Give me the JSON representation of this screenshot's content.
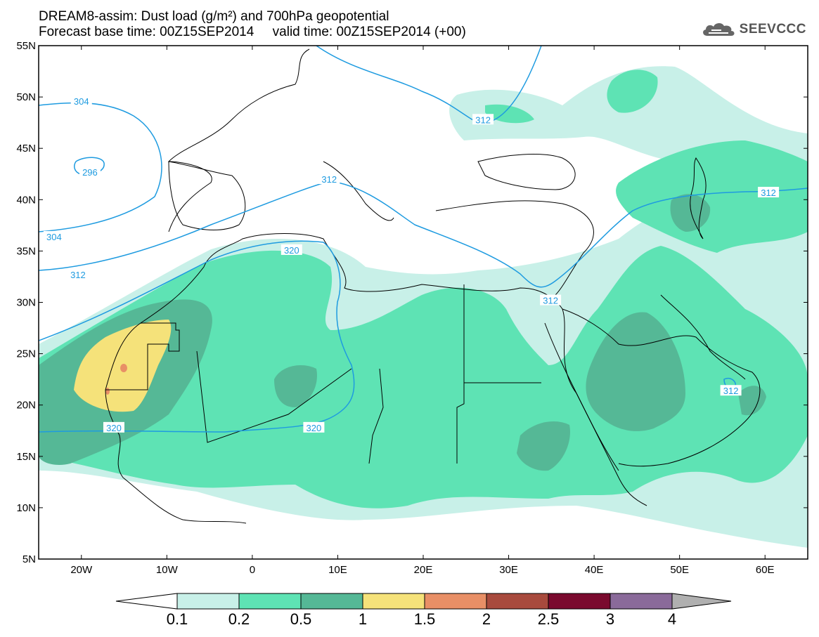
{
  "header": {
    "title_line1": "DREAM8-assim: Dust load (g/m²) and 700hPa geopotential",
    "title_line2": "Forecast base time: 00Z15SEP2014     valid time: 00Z15SEP2014 (+00)",
    "logo_text": "SEEVCCC"
  },
  "map": {
    "lat_labels": [
      "55N",
      "50N",
      "45N",
      "40N",
      "35N",
      "30N",
      "25N",
      "20N",
      "15N",
      "10N",
      "5N"
    ],
    "lon_labels": [
      "20W",
      "10W",
      "0",
      "10E",
      "20E",
      "30E",
      "40E",
      "50E",
      "60E"
    ],
    "extent": {
      "lon_min": -25,
      "lon_max": 65,
      "lat_min": 5,
      "lat_max": 55
    },
    "contour_line_color": "#1e9be0",
    "contour_labels": [
      {
        "text": "304",
        "lon": -20,
        "lat": 49.6
      },
      {
        "text": "296",
        "lon": -19,
        "lat": 42.7
      },
      {
        "text": "304",
        "lon": -23.2,
        "lat": 36.4
      },
      {
        "text": "312",
        "lon": -20.4,
        "lat": 32.7
      },
      {
        "text": "312",
        "lon": 9,
        "lat": 42
      },
      {
        "text": "320",
        "lon": 4.6,
        "lat": 35.1
      },
      {
        "text": "312",
        "lon": 27,
        "lat": 47.8
      },
      {
        "text": "312",
        "lon": 60.4,
        "lat": 40.7
      },
      {
        "text": "312",
        "lon": 34.9,
        "lat": 30.2
      },
      {
        "text": "312",
        "lon": 56,
        "lat": 21.4
      },
      {
        "text": "320",
        "lon": -16.2,
        "lat": 17.8
      },
      {
        "text": "320",
        "lon": 7.2,
        "lat": 17.8
      }
    ]
  },
  "colorbar": {
    "labels": [
      "0.1",
      "0.2",
      "0.5",
      "1",
      "1.5",
      "2",
      "2.5",
      "3",
      "4"
    ],
    "colors": [
      "#c8f0e8",
      "#5ee3b4",
      "#55b896",
      "#f5e27a",
      "#e88f66",
      "#a84a3d",
      "#7a0a2e",
      "#8a6a9a",
      "#b0b0b0"
    ]
  }
}
